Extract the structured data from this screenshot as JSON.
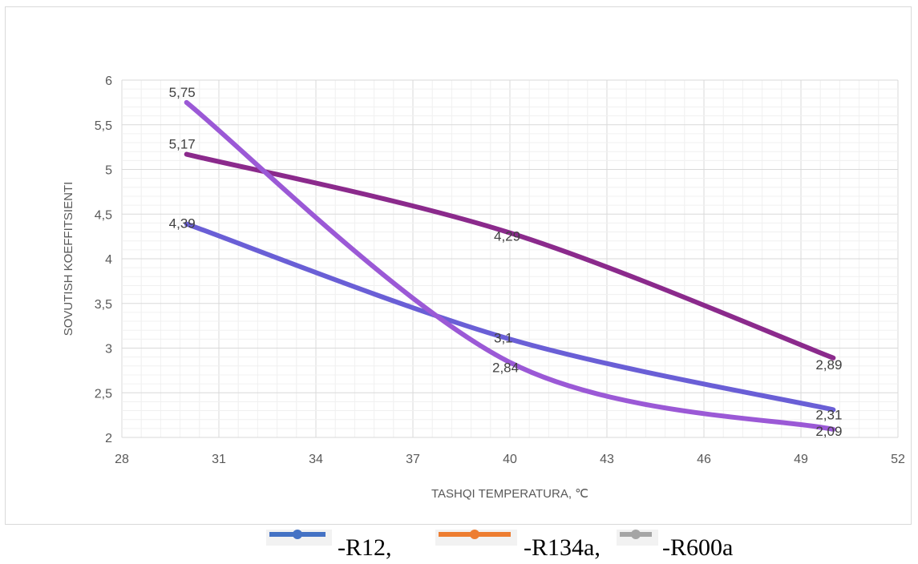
{
  "chart_data": {
    "type": "line",
    "xlabel": "TASHQI TEMPERATURA, ℃",
    "ylabel": "SOVUTISH KOEFFITSIENTI",
    "xlim": [
      28,
      52
    ],
    "ylim": [
      2,
      6
    ],
    "x_ticks": [
      "28",
      "31",
      "34",
      "37",
      "40",
      "43",
      "46",
      "49",
      "52"
    ],
    "y_ticks": [
      "2",
      "2,5",
      "3",
      "3,5",
      "4",
      "4,5",
      "5",
      "5,5",
      "6"
    ],
    "grid": true,
    "x": [
      30,
      40,
      50
    ],
    "series": [
      {
        "color": "#6a5fd6",
        "values": [
          4.39,
          3.1,
          2.31
        ],
        "labels": [
          "4,39",
          "3,1",
          "2,31"
        ]
      },
      {
        "color": "#8b2a8c",
        "values": [
          5.17,
          4.29,
          2.89
        ],
        "labels": [
          "5,17",
          "4,29",
          "2,89"
        ]
      },
      {
        "color": "#9b59d6",
        "values": [
          5.75,
          2.84,
          2.09
        ],
        "labels": [
          "5,75",
          "2,84",
          "2,09"
        ]
      }
    ]
  },
  "legend": {
    "placement": "bottom",
    "entries": [
      {
        "text": "-R12,",
        "color": "#4472c4"
      },
      {
        "text": "-R134a,",
        "color": "#ed7d31"
      },
      {
        "text": "-R600a",
        "color": "#a5a5a5"
      }
    ]
  }
}
